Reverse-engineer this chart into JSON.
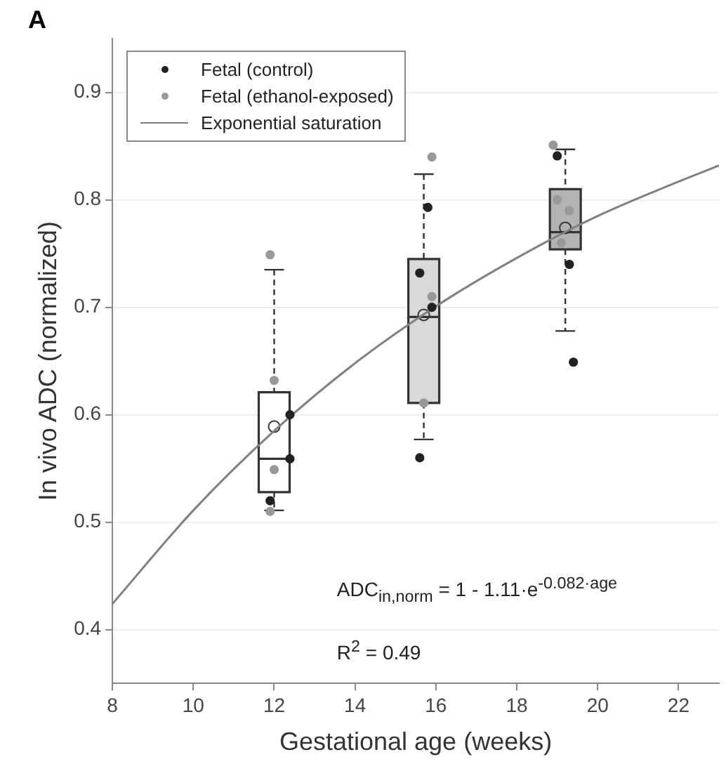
{
  "chart_data": {
    "type": "scatter",
    "title": "A",
    "xlabel": "Gestational age (weeks)",
    "ylabel": "In vivo ADC (normalized)",
    "xlim": [
      8,
      23
    ],
    "xticks": [
      8,
      10,
      12,
      14,
      16,
      18,
      20,
      22
    ],
    "ylim": [
      0.35,
      0.95
    ],
    "yticks": [
      0.4,
      0.5,
      0.6,
      0.7,
      0.8,
      0.9
    ],
    "grid": "y",
    "legend": "top left",
    "marker": "circle",
    "series": [
      {
        "type": "box",
        "color": "#333333",
        "x": [
          12,
          15.7,
          19.2
        ],
        "colors": [
          "#ffffff",
          "#d9d9d9",
          "#b3b3b3"
        ],
        "boxes": [
          {
            "low": 0.511,
            "q1": 0.528,
            "median": 0.559,
            "q3": 0.621,
            "high": 0.735,
            "mean": 0.589
          },
          {
            "low": 0.577,
            "q1": 0.611,
            "median": 0.691,
            "q3": 0.745,
            "high": 0.824,
            "mean": 0.693
          },
          {
            "low": 0.678,
            "q1": 0.754,
            "median": 0.77,
            "q3": 0.81,
            "high": 0.847,
            "mean": 0.774
          }
        ]
      },
      {
        "type": "scatter",
        "name": "Fetal (control)",
        "color": "#222222",
        "x": [
          12.39,
          12.39,
          11.9,
          15.6,
          15.8,
          15.6,
          15.9,
          19.0,
          19.3,
          19.4
        ],
        "values": [
          0.6,
          0.559,
          0.52,
          0.56,
          0.793,
          0.732,
          0.7,
          0.841,
          0.74,
          0.649
        ]
      },
      {
        "type": "scatter",
        "name": "Fetal (ethanol-exposed)",
        "color": "#999999",
        "x": [
          11.9,
          12.0,
          12.0,
          11.9,
          15.9,
          15.9,
          15.7,
          18.9,
          19.0,
          19.3,
          19.1
        ],
        "values": [
          0.749,
          0.632,
          0.549,
          0.51,
          0.84,
          0.71,
          0.611,
          0.851,
          0.8,
          0.79,
          0.76
        ]
      },
      {
        "type": "line",
        "name": "Exponential saturation",
        "color": "#808080",
        "marker": "none",
        "x": [
          8,
          10,
          12,
          14,
          16,
          18,
          20,
          22,
          23
        ],
        "values": [
          0.424,
          0.511,
          0.585,
          0.648,
          0.701,
          0.746,
          0.785,
          0.817,
          0.832
        ]
      }
    ],
    "annotations": [
      "ADC$_{in,norm}$ = 1 - 1.11·e$^{-0.082·age}$",
      "R$^{2}$ = 0.49"
    ]
  }
}
